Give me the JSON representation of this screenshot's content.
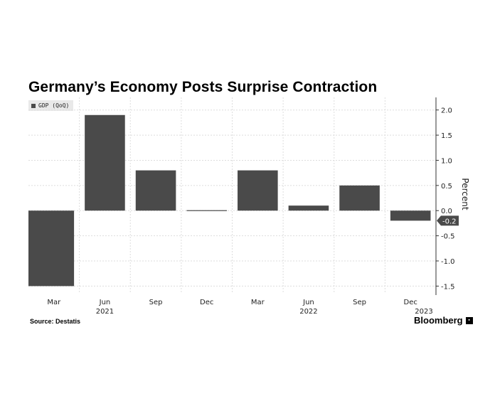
{
  "chart_data": {
    "type": "bar",
    "title": "Germany’s Economy Posts Surprise Contraction",
    "legend": "GDP (QoQ)",
    "categories": [
      "Mar",
      "Jun",
      "Sep",
      "Dec",
      "Mar",
      "Jun",
      "Sep",
      "Dec"
    ],
    "year_labels": [
      "2021",
      "2022",
      "2023"
    ],
    "series": [
      {
        "name": "GDP (QoQ)",
        "values": [
          -1.5,
          1.9,
          0.8,
          0.0,
          0.8,
          0.1,
          0.5,
          -0.2
        ]
      }
    ],
    "ylabel": "Percent",
    "ylim": [
      -1.65,
      2.25
    ],
    "yticks": [
      2.0,
      1.5,
      1.0,
      0.5,
      0.0,
      -0.5,
      -1.0,
      -1.5
    ],
    "ytick_labels": [
      "2.0",
      "1.5",
      "1.0",
      "0.5",
      "0.0",
      "-0.5",
      "-1.0",
      "-1.5"
    ],
    "last_value_label": "-0.2",
    "source": "Source: Destatis",
    "grid": true,
    "bar_color": "#4a4a4a"
  },
  "footer": {
    "source": "Source: Destatis",
    "brand": "Bloomberg"
  }
}
